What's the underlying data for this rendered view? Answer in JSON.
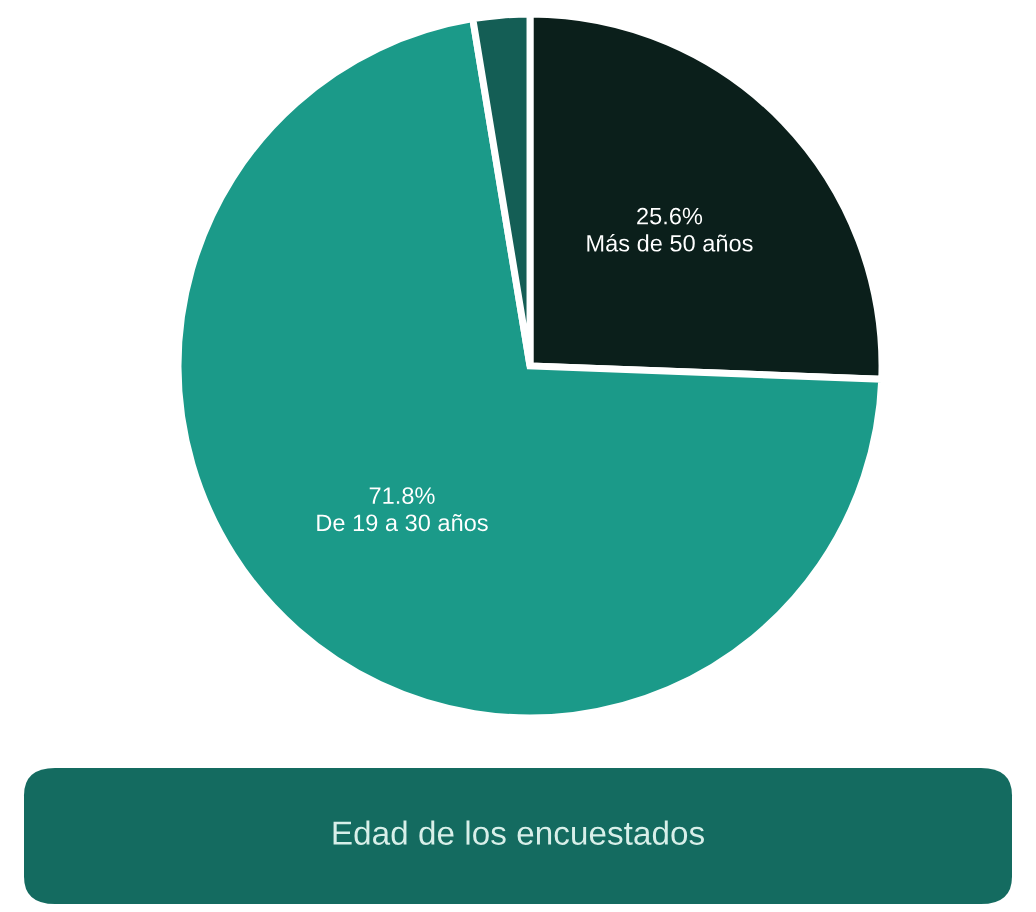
{
  "chart_data": {
    "type": "pie",
    "title": "Edad de los encuestados",
    "categories": [
      "Más de 50 años",
      "De 19 a 30 años",
      null
    ],
    "values": [
      25.6,
      71.8,
      2.6
    ],
    "value_labels": [
      "25.6%",
      "71.8%",
      null
    ],
    "colors": [
      "#0b1f1b",
      "#1b9a89",
      "#145e55"
    ]
  }
}
